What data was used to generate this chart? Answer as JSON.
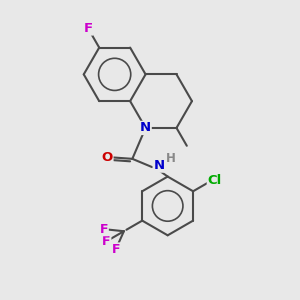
{
  "background_color": "#e8e8e8",
  "bond_color": "#4a4a4a",
  "atom_colors": {
    "F": "#cc00cc",
    "N": "#0000cc",
    "O": "#cc0000",
    "Cl": "#00aa00",
    "H": "#888888",
    "C": "#4a4a4a"
  },
  "font_size": 9.0,
  "figsize": [
    3.0,
    3.0
  ],
  "dpi": 100,
  "bond_lw": 1.5,
  "bl": 1.0
}
